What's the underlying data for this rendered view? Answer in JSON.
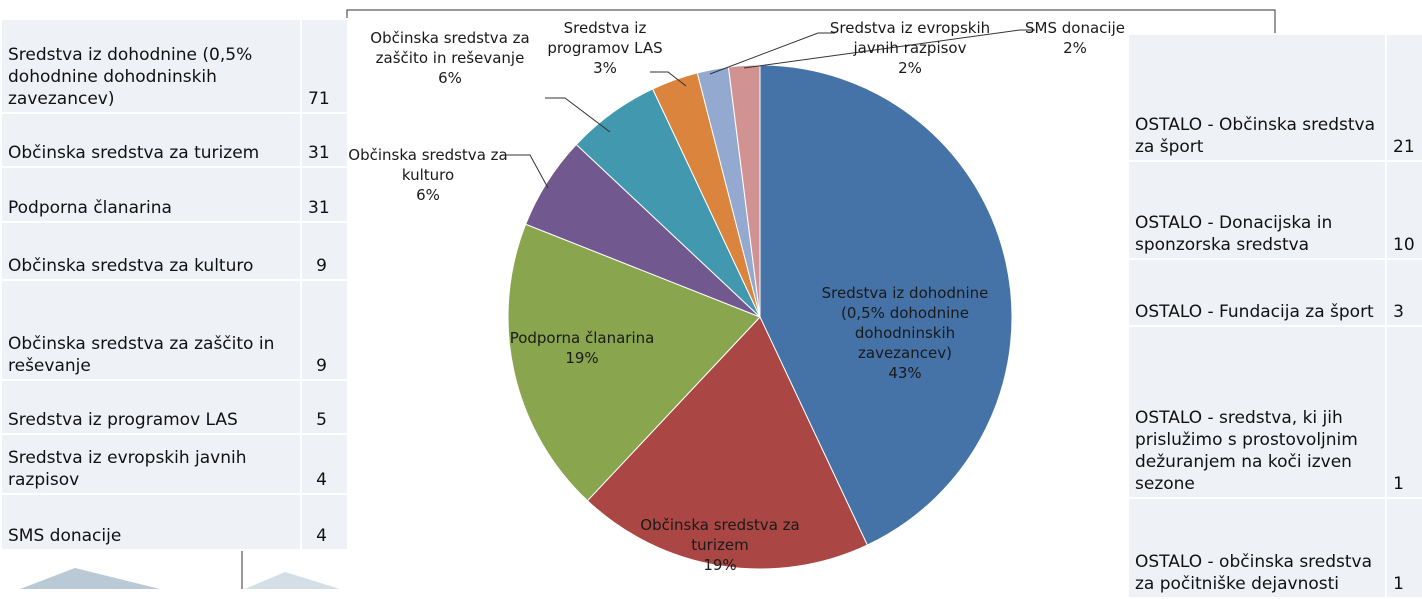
{
  "chart_data": {
    "type": "pie",
    "categories": [
      "Sredstva iz dohodnine (0,5% dohodnine dohodninskih zavezancev)",
      "Občinska sredstva za turizem",
      "Podporna članarina",
      "Občinska sredstva za kulturo",
      "Občinska sredstva za zaščito in reševanje",
      "Sredstva iz programov LAS",
      "Sredstva iz evropskih javnih razpisov",
      "SMS donacije"
    ],
    "values": [
      43,
      19,
      19,
      6,
      6,
      3,
      2,
      2
    ],
    "value_labels": [
      "43%",
      "19%",
      "19%",
      "6%",
      "6%",
      "3%",
      "2%",
      "2%"
    ],
    "colors": [
      "#4572a7",
      "#aa4643",
      "#89a54e",
      "#71588f",
      "#4198af",
      "#db843d",
      "#93a9cf",
      "#d19392"
    ]
  },
  "left_table": {
    "rows": [
      [
        "Sredstva iz dohodnine (0,5% dohodnine dohodninskih zavezancev)",
        71
      ],
      [
        "Občinska sredstva za turizem",
        31
      ],
      [
        "Podporna članarina",
        31
      ],
      [
        "Občinska sredstva za kulturo",
        9
      ],
      [
        "Občinska sredstva za zaščito in reševanje",
        9
      ],
      [
        "Sredstva iz programov LAS",
        5
      ],
      [
        "Sredstva iz evropskih javnih razpisov",
        4
      ],
      [
        "SMS donacije",
        4
      ]
    ]
  },
  "right_table": {
    "rows": [
      [
        "OSTALO - Občinska sredstva za šport",
        21
      ],
      [
        "OSTALO - Donacijska in sponzorska sredstva",
        10
      ],
      [
        "OSTALO - Fundacija za šport",
        3
      ],
      [
        "OSTALO - sredstva, ki jih prislužimo s prostovoljnim dežuranjem na koči izven sezone",
        1
      ],
      [
        "OSTALO - občinska sredstva za počitniške dejavnosti",
        1
      ]
    ]
  }
}
